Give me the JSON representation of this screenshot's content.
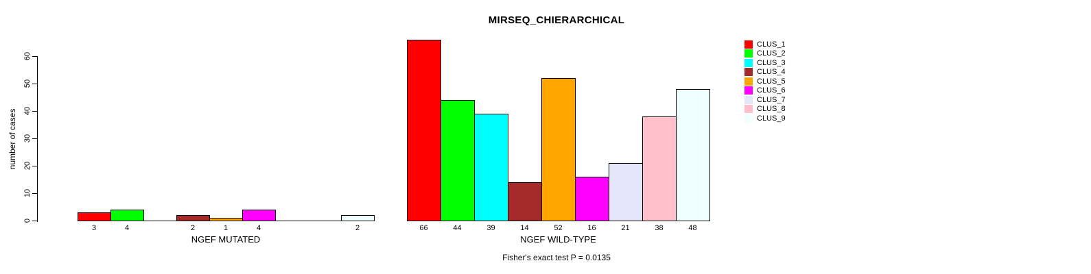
{
  "title": "MIRSEQ_CHIERARCHICAL",
  "subtitle": "Fisher's exact test P = 0.0135",
  "chart_data": {
    "type": "bar",
    "title": "MIRSEQ_CHIERARCHICAL",
    "xlabel": "",
    "ylabel": "number of cases",
    "ylim": [
      0,
      66
    ],
    "yticks": [
      0,
      10,
      20,
      30,
      40,
      50,
      60
    ],
    "grid": false,
    "legend_position": "right",
    "legend": [
      "CLUS_1",
      "CLUS_2",
      "CLUS_3",
      "CLUS_4",
      "CLUS_5",
      "CLUS_6",
      "CLUS_7",
      "CLUS_8",
      "CLUS_9"
    ],
    "colors": [
      "#FF0000",
      "#00FF00",
      "#00FFFF",
      "#A52A2A",
      "#FFA500",
      "#FF00FF",
      "#E6E6FA",
      "#FFC0CB",
      "#F0FFFF"
    ],
    "groups": [
      {
        "label": "NGEF MUTATED",
        "series": [
          "CLUS_1",
          "CLUS_2",
          "CLUS_3",
          "CLUS_4",
          "CLUS_5",
          "CLUS_6",
          "CLUS_7",
          "CLUS_8",
          "CLUS_9"
        ],
        "values": [
          3,
          4,
          0,
          2,
          1,
          4,
          0,
          0,
          2
        ],
        "bar_labels": [
          "3",
          "4",
          "",
          "2",
          "1",
          "4",
          "",
          "",
          "2"
        ]
      },
      {
        "label": "NGEF WILD-TYPE",
        "series": [
          "CLUS_1",
          "CLUS_2",
          "CLUS_3",
          "CLUS_4",
          "CLUS_5",
          "CLUS_6",
          "CLUS_7",
          "CLUS_8",
          "CLUS_9"
        ],
        "values": [
          66,
          44,
          39,
          14,
          52,
          16,
          21,
          38,
          48
        ],
        "bar_labels": [
          "66",
          "44",
          "39",
          "14",
          "52",
          "16",
          "21",
          "38",
          "48"
        ]
      }
    ],
    "annotation": "Fisher's exact test P = 0.0135"
  }
}
